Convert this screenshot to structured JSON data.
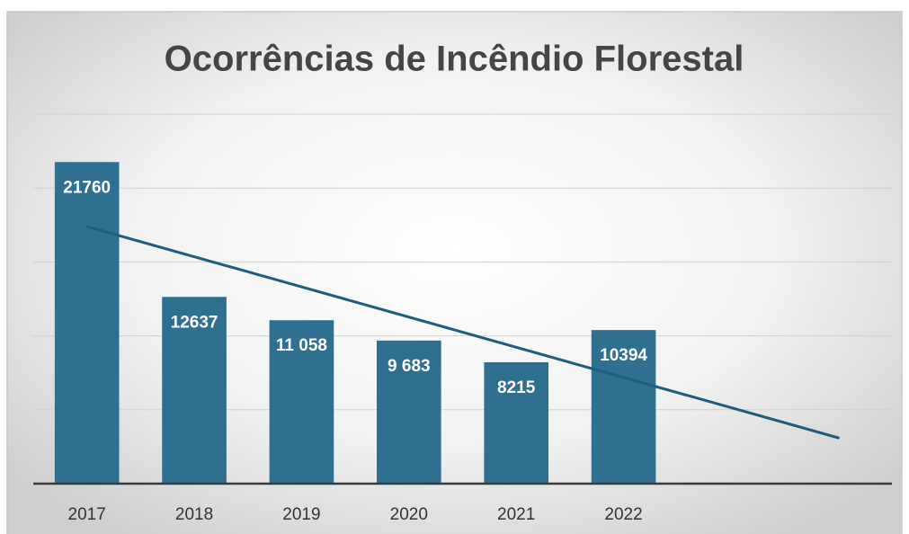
{
  "chart_data": {
    "type": "bar",
    "title": "Ocorrências de Incêndio Florestal",
    "categories": [
      "2017",
      "2018",
      "2019",
      "2020",
      "2021",
      "2022",
      null,
      null
    ],
    "values": [
      21760,
      12637,
      11058,
      9683,
      8215,
      10394,
      null,
      null
    ],
    "value_labels": [
      "21760",
      "12637",
      "11 058",
      "9 683",
      "8215",
      "10394",
      null,
      null
    ],
    "color": "#2f6f8f",
    "ylim": [
      0,
      25000
    ],
    "yticks": [
      0,
      5000,
      10000,
      15000,
      20000,
      25000
    ],
    "grid": true,
    "trendline": {
      "type": "linear",
      "color": "#1d5d7e"
    }
  }
}
